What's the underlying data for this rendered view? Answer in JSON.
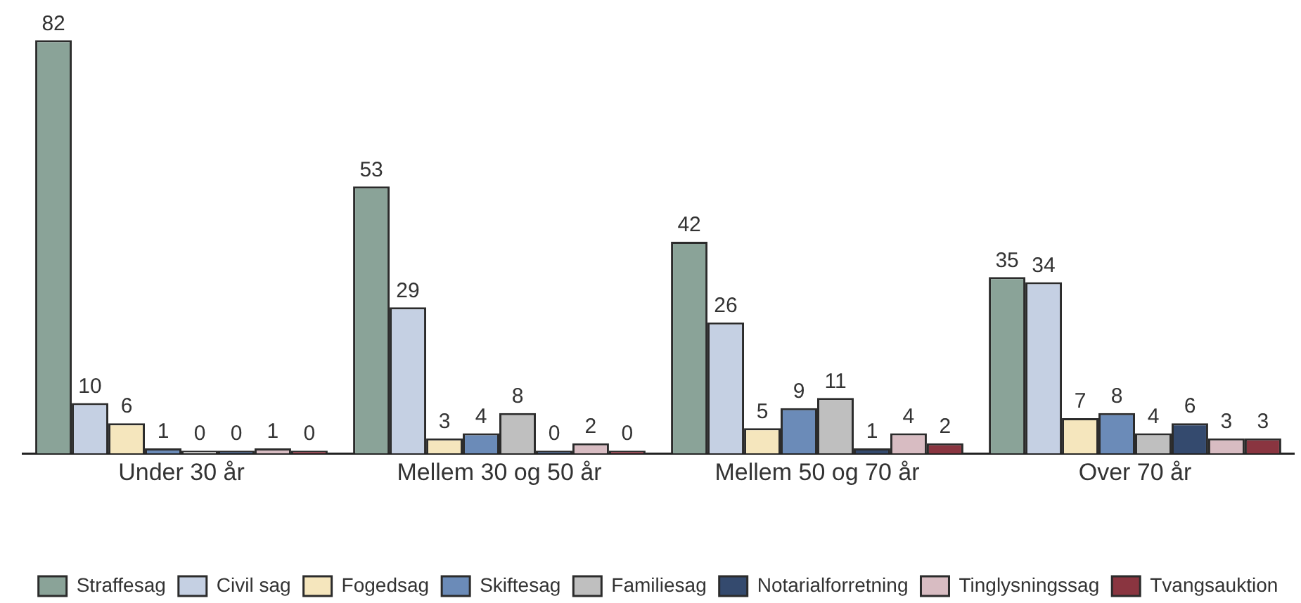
{
  "chart_data": {
    "type": "bar",
    "categories": [
      "Under 30 år",
      "Mellem 30 og 50 år",
      "Mellem 50 og 70 år",
      "Over 70 år"
    ],
    "series": [
      {
        "name": "Straffesag",
        "color": "#8aa398",
        "values": [
          82,
          53,
          42,
          35
        ]
      },
      {
        "name": "Civil sag",
        "color": "#c5d0e3",
        "values": [
          10,
          29,
          26,
          34
        ]
      },
      {
        "name": "Fogedsag",
        "color": "#f5e6bd",
        "values": [
          6,
          3,
          5,
          7
        ]
      },
      {
        "name": "Skiftesag",
        "color": "#6b8bb8",
        "values": [
          1,
          4,
          9,
          8
        ]
      },
      {
        "name": "Familiesag",
        "color": "#bfbfbf",
        "values": [
          0,
          8,
          11,
          4
        ]
      },
      {
        "name": "Notarialforretning",
        "color": "#344a6e",
        "values": [
          0,
          0,
          1,
          6
        ]
      },
      {
        "name": "Tinglysningssag",
        "color": "#d8bcc2",
        "values": [
          1,
          2,
          4,
          3
        ]
      },
      {
        "name": "Tvangsauktion",
        "color": "#8a3540",
        "values": [
          0,
          0,
          2,
          3
        ]
      }
    ],
    "data_labels": true,
    "legend": "bottom"
  }
}
